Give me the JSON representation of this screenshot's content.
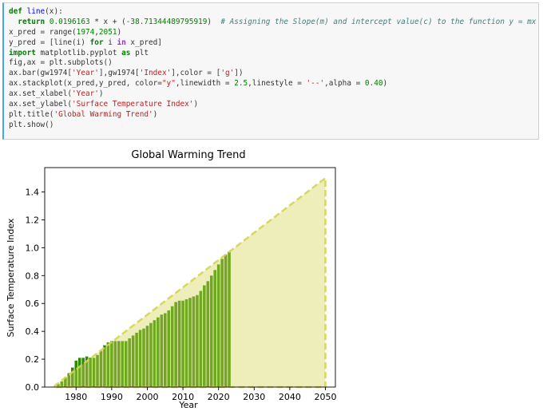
{
  "code_cell": {
    "lines": [
      [
        {
          "t": "def ",
          "c": "kw"
        },
        {
          "t": "line",
          "c": "fn"
        },
        {
          "t": "(x):",
          "c": ""
        }
      ],
      [
        {
          "t": "  ",
          "c": ""
        },
        {
          "t": "return ",
          "c": "kw"
        },
        {
          "t": "0.0196163",
          "c": "num"
        },
        {
          "t": " * x + (",
          "c": ""
        },
        {
          "t": "-38.71344489795919",
          "c": "num"
        },
        {
          "t": ")  ",
          "c": ""
        },
        {
          "t": "# Assigning the Slope(m) and intercept value(c) to the function y = mx + c.",
          "c": "cmt"
        }
      ],
      [
        {
          "t": "x_pred = range(",
          "c": ""
        },
        {
          "t": "1974",
          "c": "num"
        },
        {
          "t": ",",
          "c": ""
        },
        {
          "t": "2051",
          "c": "num"
        },
        {
          "t": ")",
          "c": ""
        }
      ],
      [
        {
          "t": "y_pred = [line(i) ",
          "c": ""
        },
        {
          "t": "for",
          "c": "kw"
        },
        {
          "t": " i ",
          "c": ""
        },
        {
          "t": "in",
          "c": "op"
        },
        {
          "t": " x_pred]",
          "c": ""
        }
      ],
      [
        {
          "t": "import",
          "c": "kw"
        },
        {
          "t": " matplotlib.pyplot ",
          "c": ""
        },
        {
          "t": "as",
          "c": "kw"
        },
        {
          "t": " plt",
          "c": ""
        }
      ],
      [
        {
          "t": "fig,ax = plt.subplots()",
          "c": ""
        }
      ],
      [
        {
          "t": "ax.bar(gw1974[",
          "c": ""
        },
        {
          "t": "'Year'",
          "c": "str"
        },
        {
          "t": "],gw1974[",
          "c": ""
        },
        {
          "t": "'Index'",
          "c": "str"
        },
        {
          "t": "],color = [",
          "c": ""
        },
        {
          "t": "'g'",
          "c": "str"
        },
        {
          "t": "])",
          "c": ""
        }
      ],
      [
        {
          "t": "ax.stackplot(x_pred,y_pred, color=",
          "c": ""
        },
        {
          "t": "\"y\"",
          "c": "str"
        },
        {
          "t": ",linewidth = ",
          "c": ""
        },
        {
          "t": "2.5",
          "c": "num"
        },
        {
          "t": ",linestyle = ",
          "c": ""
        },
        {
          "t": "'--'",
          "c": "str"
        },
        {
          "t": ",alpha = ",
          "c": ""
        },
        {
          "t": "0.40",
          "c": "num"
        },
        {
          "t": ")",
          "c": ""
        }
      ],
      [
        {
          "t": "ax.set_xlabel(",
          "c": ""
        },
        {
          "t": "'Year'",
          "c": "str"
        },
        {
          "t": ")",
          "c": ""
        }
      ],
      [
        {
          "t": "ax.set_ylabel(",
          "c": ""
        },
        {
          "t": "'Surface Temperature Index'",
          "c": "str"
        },
        {
          "t": ")",
          "c": ""
        }
      ],
      [
        {
          "t": "plt.title(",
          "c": ""
        },
        {
          "t": "'Global Warming Trend'",
          "c": "str"
        },
        {
          "t": ")",
          "c": ""
        }
      ],
      [
        {
          "t": "plt.show()",
          "c": ""
        }
      ]
    ]
  },
  "chart_data": {
    "type": "bar",
    "title": "Global Warming Trend",
    "xlabel": "Year",
    "ylabel": "Surface Temperature Index",
    "xlim": [
      1971.2,
      2052.8
    ],
    "ylim": [
      0,
      1.575
    ],
    "xticks": [
      1980,
      1990,
      2000,
      2010,
      2020,
      2030,
      2040,
      2050
    ],
    "yticks": [
      0.0,
      0.2,
      0.4,
      0.6,
      0.8,
      1.0,
      1.2,
      1.4
    ],
    "grid": false,
    "series": [
      {
        "kind": "bar",
        "color": "#2e8b00",
        "x": [
          1974,
          1975,
          1976,
          1977,
          1978,
          1979,
          1980,
          1981,
          1982,
          1983,
          1984,
          1985,
          1986,
          1987,
          1988,
          1989,
          1990,
          1991,
          1992,
          1993,
          1994,
          1995,
          1996,
          1997,
          1998,
          1999,
          2000,
          2001,
          2002,
          2003,
          2004,
          2005,
          2006,
          2007,
          2008,
          2009,
          2010,
          2011,
          2012,
          2013,
          2014,
          2015,
          2016,
          2017,
          2018,
          2019,
          2020,
          2021,
          2022,
          2023
        ],
        "values": [
          0.0,
          0.02,
          0.04,
          0.07,
          0.1,
          0.14,
          0.19,
          0.21,
          0.21,
          0.22,
          0.21,
          0.21,
          0.23,
          0.26,
          0.3,
          0.32,
          0.33,
          0.33,
          0.33,
          0.33,
          0.33,
          0.35,
          0.37,
          0.39,
          0.41,
          0.42,
          0.44,
          0.46,
          0.48,
          0.5,
          0.52,
          0.53,
          0.55,
          0.58,
          0.61,
          0.62,
          0.62,
          0.63,
          0.64,
          0.65,
          0.66,
          0.69,
          0.73,
          0.76,
          0.8,
          0.84,
          0.88,
          0.92,
          0.95,
          0.97
        ]
      },
      {
        "kind": "stackplot",
        "color": "#d4d452",
        "alpha": 0.4,
        "linestyle": "--",
        "slope": 0.0196163,
        "intercept": -38.71344489795919,
        "x_start": 1974,
        "x_end": 2050
      }
    ]
  }
}
